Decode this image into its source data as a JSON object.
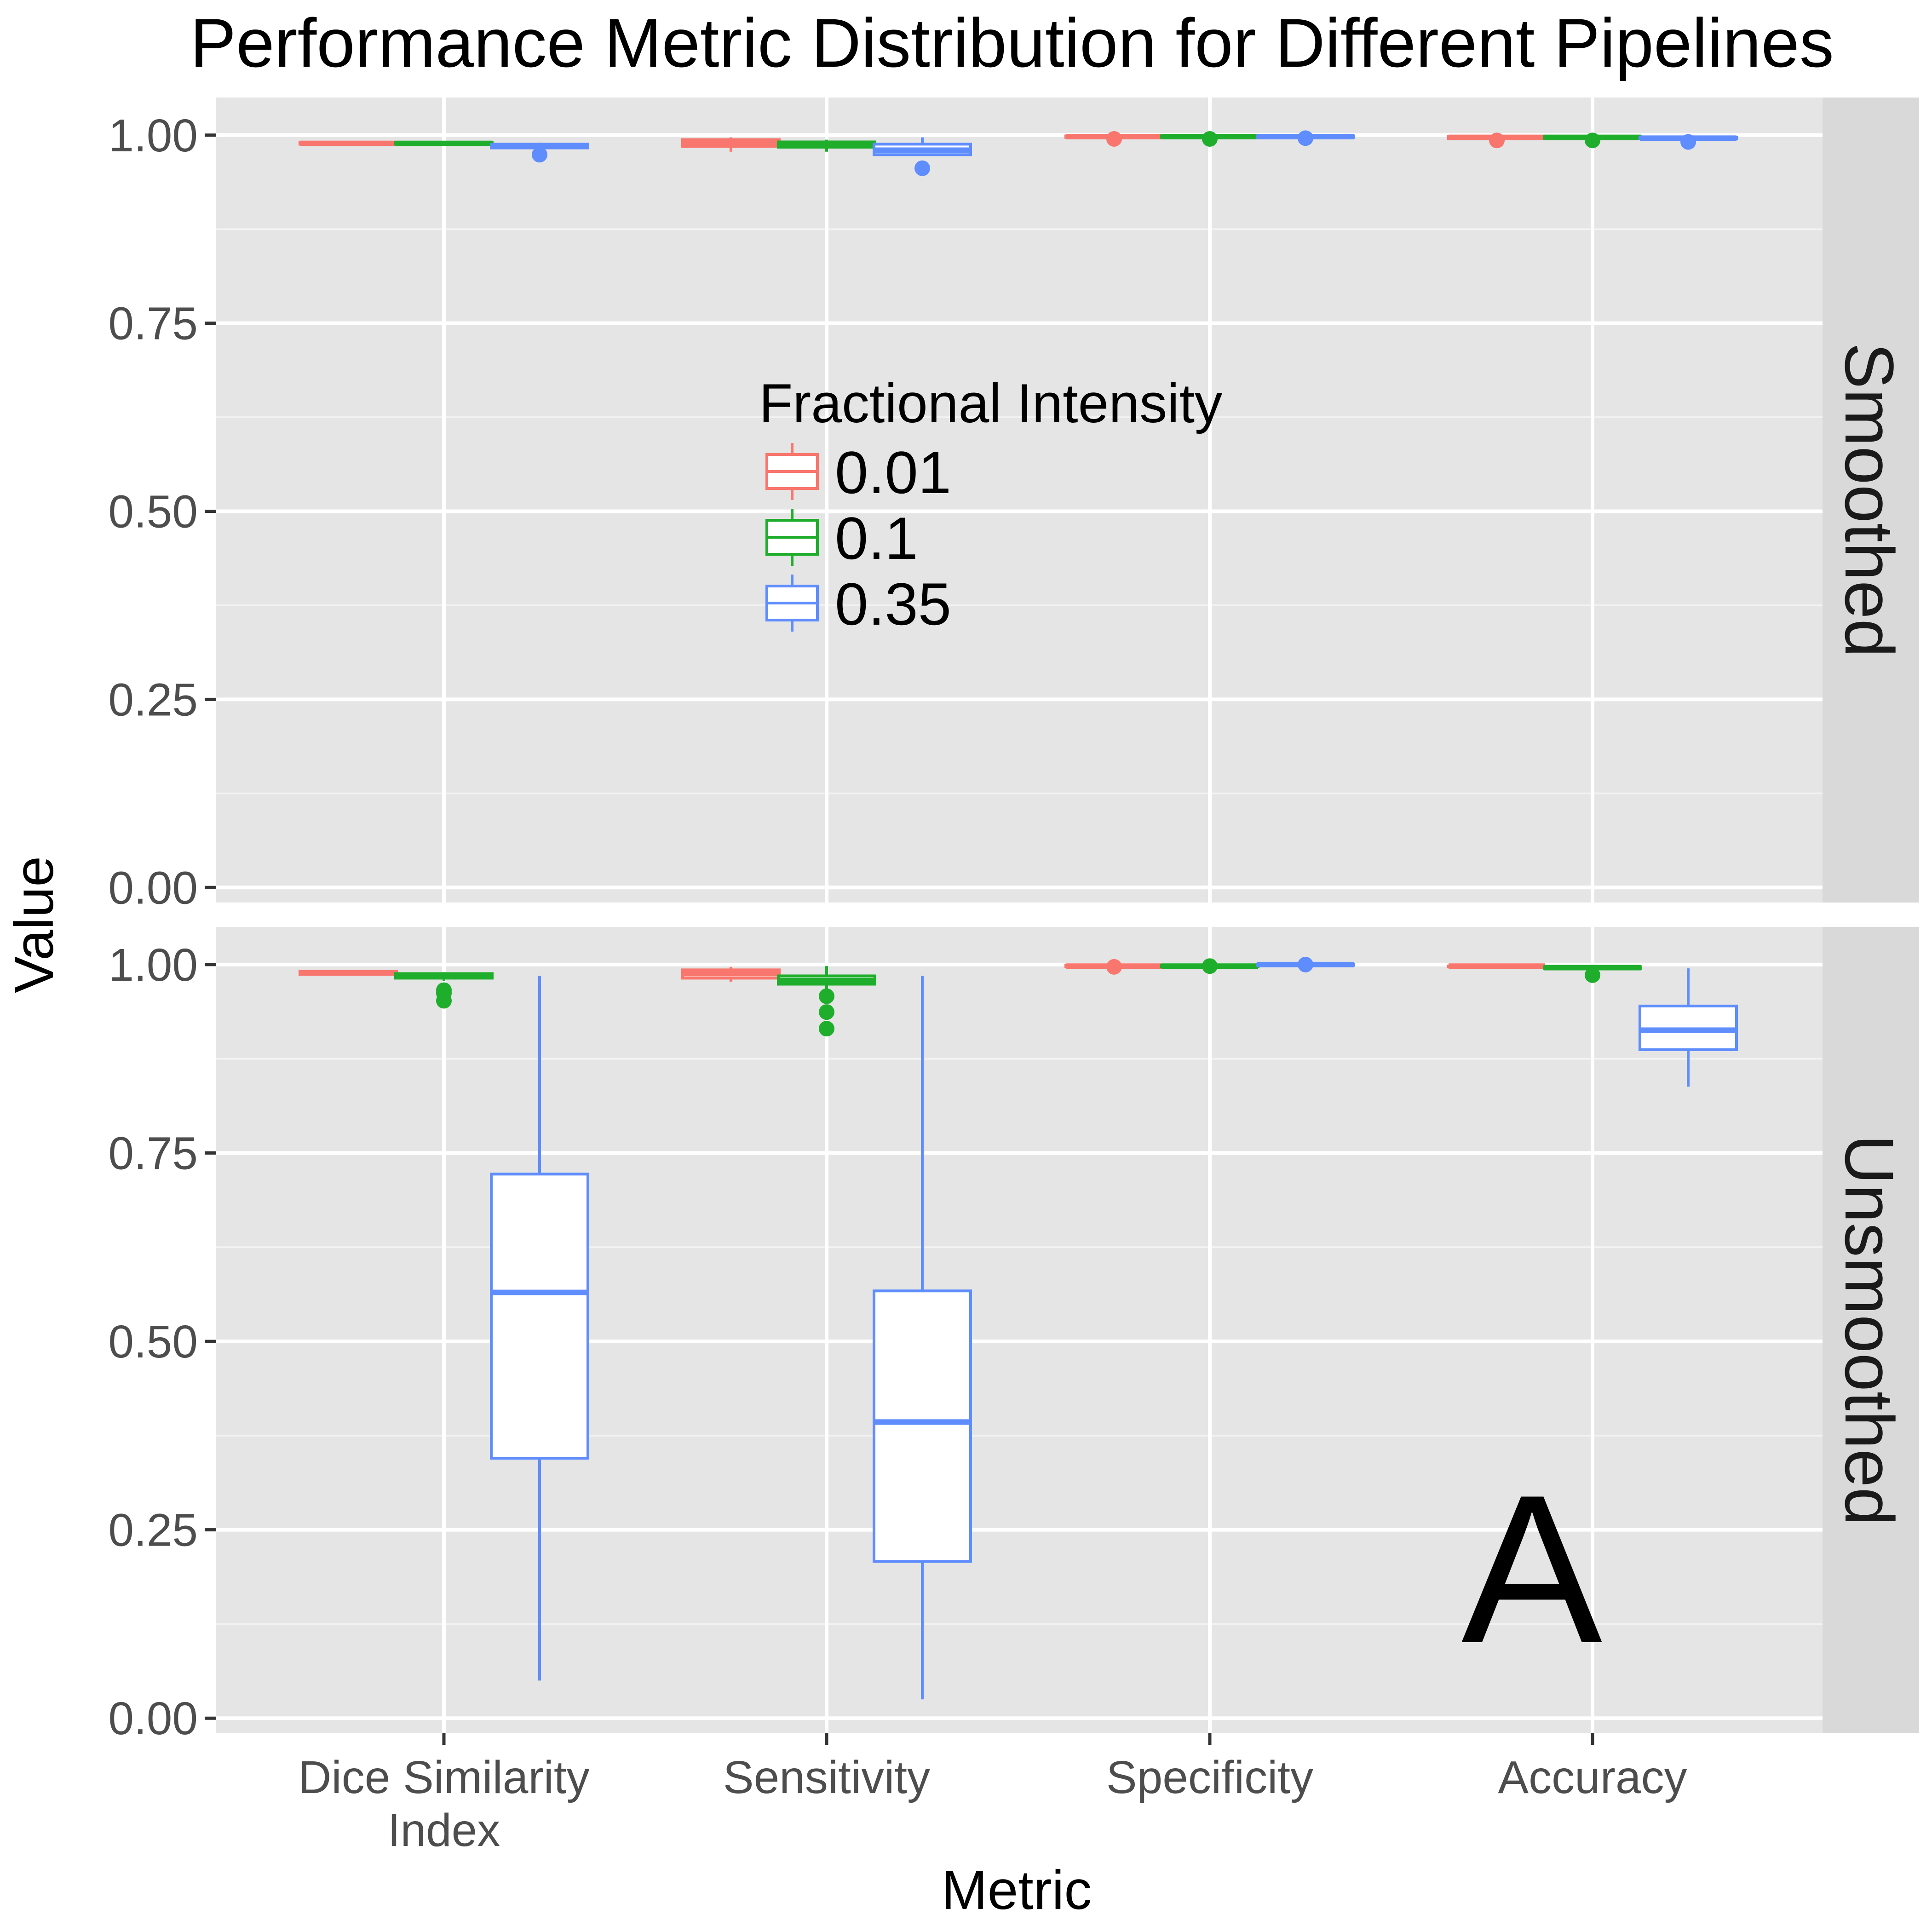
{
  "chart_data": {
    "type": "boxplot",
    "title": "Performance Metric Distribution for Different Pipelines",
    "xlabel": "Metric",
    "ylabel": "Value",
    "ylim": [
      -0.02,
      1.05
    ],
    "yticks": [
      0.0,
      0.25,
      0.5,
      0.75,
      1.0
    ],
    "ytick_labels": [
      "0.00",
      "0.25",
      "0.50",
      "0.75",
      "1.00"
    ],
    "categories": [
      [
        "Dice Similarity",
        "Index"
      ],
      [
        "Sensitivity"
      ],
      [
        "Specificity"
      ],
      [
        "Accuracy"
      ]
    ],
    "legend": {
      "title": "Fractional Intensity",
      "placement": "top-center",
      "entries": [
        "0.01",
        "0.1",
        "0.35"
      ]
    },
    "colors": {
      "0.01": "#f8766d",
      "0.1": "#1fad2c",
      "0.35": "#5f8dfd"
    },
    "annotation": "A",
    "grid": true,
    "panels": [
      {
        "label": "Smoothed",
        "boxes": [
          {
            "metric": 0,
            "group": "0.01",
            "whisker_low": 0.988,
            "q1": 0.988,
            "median": 0.989,
            "q3": 0.99,
            "whisker_high": 0.991,
            "outliers": []
          },
          {
            "metric": 0,
            "group": "0.1",
            "whisker_low": 0.988,
            "q1": 0.988,
            "median": 0.989,
            "q3": 0.99,
            "whisker_high": 0.991,
            "outliers": []
          },
          {
            "metric": 0,
            "group": "0.35",
            "whisker_low": 0.983,
            "q1": 0.983,
            "median": 0.986,
            "q3": 0.988,
            "whisker_high": 0.99,
            "outliers": [
              0.974
            ]
          },
          {
            "metric": 1,
            "group": "0.01",
            "whisker_low": 0.978,
            "q1": 0.985,
            "median": 0.99,
            "q3": 0.994,
            "whisker_high": 0.997,
            "outliers": []
          },
          {
            "metric": 1,
            "group": "0.1",
            "whisker_low": 0.978,
            "q1": 0.984,
            "median": 0.987,
            "q3": 0.991,
            "whisker_high": 0.994,
            "outliers": []
          },
          {
            "metric": 1,
            "group": "0.35",
            "whisker_low": 0.974,
            "q1": 0.974,
            "median": 0.98,
            "q3": 0.988,
            "whisker_high": 0.997,
            "outliers": [
              0.956
            ]
          },
          {
            "metric": 2,
            "group": "0.01",
            "whisker_low": 0.996,
            "q1": 0.997,
            "median": 0.998,
            "q3": 0.999,
            "whisker_high": 1.0,
            "outliers": [
              0.995
            ]
          },
          {
            "metric": 2,
            "group": "0.1",
            "whisker_low": 0.996,
            "q1": 0.997,
            "median": 0.998,
            "q3": 0.999,
            "whisker_high": 1.0,
            "outliers": [
              0.995
            ]
          },
          {
            "metric": 2,
            "group": "0.35",
            "whisker_low": 0.996,
            "q1": 0.997,
            "median": 0.998,
            "q3": 0.999,
            "whisker_high": 1.0,
            "outliers": [
              0.996
            ]
          },
          {
            "metric": 3,
            "group": "0.01",
            "whisker_low": 0.995,
            "q1": 0.995,
            "median": 0.997,
            "q3": 0.998,
            "whisker_high": 0.999,
            "outliers": [
              0.993
            ]
          },
          {
            "metric": 3,
            "group": "0.1",
            "whisker_low": 0.995,
            "q1": 0.995,
            "median": 0.997,
            "q3": 0.998,
            "whisker_high": 0.999,
            "outliers": [
              0.993
            ]
          },
          {
            "metric": 3,
            "group": "0.35",
            "whisker_low": 0.994,
            "q1": 0.995,
            "median": 0.996,
            "q3": 0.997,
            "whisker_high": 0.998,
            "outliers": [
              0.991
            ]
          }
        ]
      },
      {
        "label": "Unsmoothed",
        "boxes": [
          {
            "metric": 0,
            "group": "0.01",
            "whisker_low": 0.986,
            "q1": 0.987,
            "median": 0.989,
            "q3": 0.991,
            "whisker_high": 0.992,
            "outliers": []
          },
          {
            "metric": 0,
            "group": "0.1",
            "whisker_low": 0.978,
            "q1": 0.982,
            "median": 0.985,
            "q3": 0.988,
            "whisker_high": 0.99,
            "outliers": [
              0.966,
              0.962,
              0.952
            ]
          },
          {
            "metric": 0,
            "group": "0.35",
            "whisker_low": 0.05,
            "q1": 0.345,
            "median": 0.565,
            "q3": 0.722,
            "whisker_high": 0.985,
            "outliers": []
          },
          {
            "metric": 1,
            "group": "0.01",
            "whisker_low": 0.977,
            "q1": 0.982,
            "median": 0.988,
            "q3": 0.993,
            "whisker_high": 0.997,
            "outliers": []
          },
          {
            "metric": 1,
            "group": "0.1",
            "whisker_low": 0.968,
            "q1": 0.974,
            "median": 0.979,
            "q3": 0.985,
            "whisker_high": 0.998,
            "outliers": [
              0.958,
              0.937,
              0.915
            ]
          },
          {
            "metric": 1,
            "group": "0.35",
            "whisker_low": 0.025,
            "q1": 0.208,
            "median": 0.393,
            "q3": 0.567,
            "whisker_high": 0.985,
            "outliers": []
          },
          {
            "metric": 2,
            "group": "0.01",
            "whisker_low": 0.996,
            "q1": 0.997,
            "median": 0.998,
            "q3": 0.999,
            "whisker_high": 1.0,
            "outliers": [
              0.997
            ]
          },
          {
            "metric": 2,
            "group": "0.1",
            "whisker_low": 0.996,
            "q1": 0.997,
            "median": 0.998,
            "q3": 0.999,
            "whisker_high": 1.0,
            "outliers": [
              0.998
            ]
          },
          {
            "metric": 2,
            "group": "0.35",
            "whisker_low": 0.998,
            "q1": 0.999,
            "median": 1.0,
            "q3": 1.0,
            "whisker_high": 1.0,
            "outliers": [
              1.0
            ]
          },
          {
            "metric": 3,
            "group": "0.01",
            "whisker_low": 0.996,
            "q1": 0.997,
            "median": 0.998,
            "q3": 0.998,
            "whisker_high": 0.999,
            "outliers": []
          },
          {
            "metric": 3,
            "group": "0.1",
            "whisker_low": 0.994,
            "q1": 0.995,
            "median": 0.996,
            "q3": 0.997,
            "whisker_high": 0.998,
            "outliers": [
              0.986
            ]
          },
          {
            "metric": 3,
            "group": "0.35",
            "whisker_low": 0.838,
            "q1": 0.887,
            "median": 0.913,
            "q3": 0.945,
            "whisker_high": 0.995,
            "outliers": []
          }
        ]
      }
    ]
  }
}
